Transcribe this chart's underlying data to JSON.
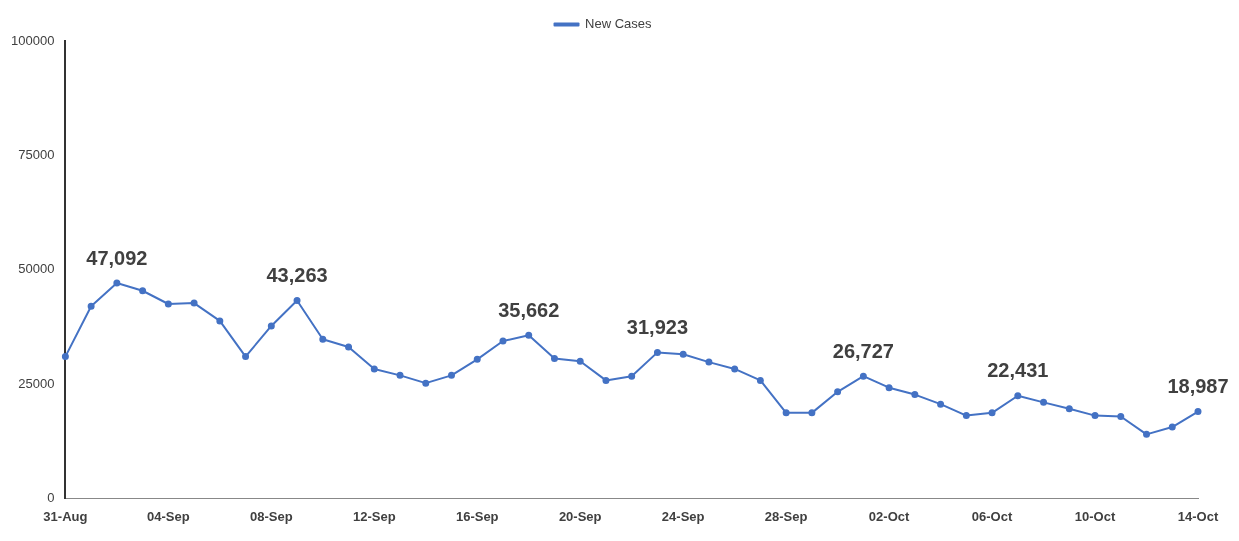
{
  "chart_data": {
    "type": "line",
    "categories": [
      "31-Aug",
      null,
      null,
      null,
      "04-Sep",
      null,
      null,
      null,
      "08-Sep",
      null,
      null,
      null,
      "12-Sep",
      null,
      null,
      null,
      "16-Sep",
      null,
      null,
      null,
      "20-Sep",
      null,
      null,
      null,
      "24-Sep",
      null,
      null,
      null,
      "28-Sep",
      null,
      null,
      null,
      "02-Oct",
      null,
      null,
      null,
      "06-Oct",
      null,
      null,
      null,
      "10-Oct",
      null,
      null,
      null,
      "14-Oct"
    ],
    "series": [
      {
        "name": "New Cases",
        "color": "#4472c4",
        "values": [
          31000,
          42000,
          47092,
          45400,
          42500,
          42700,
          38800,
          31000,
          37700,
          43263,
          34800,
          33100,
          28300,
          26900,
          25200,
          26900,
          30400,
          34400,
          35662,
          30600,
          30000,
          25800,
          26700,
          31923,
          31500,
          29800,
          28300,
          25800,
          18700,
          18700,
          23300,
          26727,
          24200,
          22700,
          20600,
          18100,
          18700,
          22431,
          21000,
          19600,
          18100,
          17900,
          14000,
          15600,
          18987
        ],
        "value_labels": [
          null,
          null,
          "47,092",
          null,
          null,
          null,
          null,
          null,
          null,
          "43,263",
          null,
          null,
          null,
          null,
          null,
          null,
          null,
          null,
          "35,662",
          null,
          null,
          null,
          null,
          "31,923",
          null,
          null,
          null,
          null,
          null,
          null,
          null,
          "26,727",
          null,
          null,
          null,
          null,
          null,
          "22,431",
          null,
          null,
          null,
          null,
          null,
          null,
          "18,987"
        ]
      }
    ],
    "ylim": [
      0,
      100000
    ],
    "yticks": [
      0,
      25000,
      50000,
      75000,
      100000
    ],
    "grid": false,
    "legend": "top",
    "marker": "circle",
    "line_style": "solid"
  }
}
